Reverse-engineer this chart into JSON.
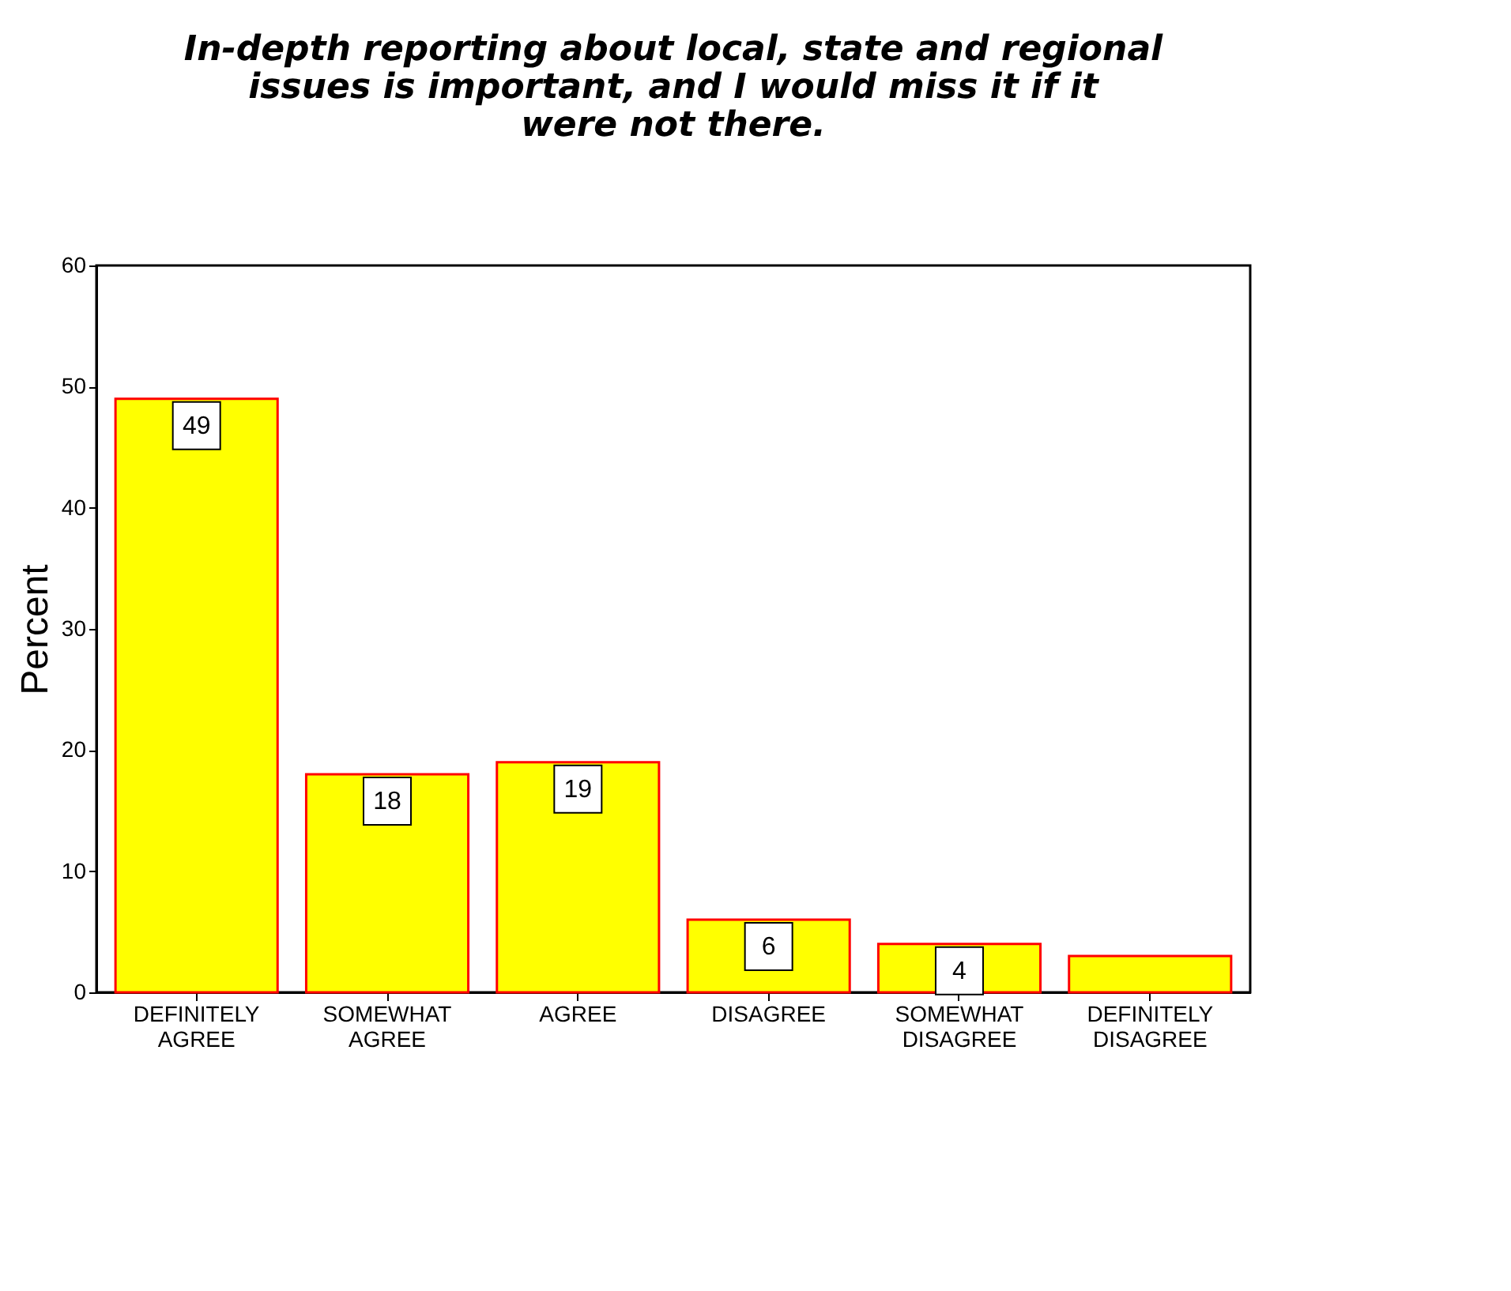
{
  "chart_data": {
    "type": "bar",
    "title": "In-depth reporting about local, state and regional issues is important, and I would miss it if it were not there.",
    "categories": [
      "DEFINITELY AGREE",
      "SOMEWHAT AGREE",
      "AGREE",
      "DISAGREE",
      "SOMEWHAT DISAGREE",
      "DEFINITELY DISAGREE"
    ],
    "values": [
      49,
      18,
      19,
      6,
      4,
      3
    ],
    "value_labels": [
      "49",
      "18",
      "19",
      "6",
      "4",
      null
    ],
    "color": "#ffff00",
    "ylabel": "Percent",
    "ylim": [
      0,
      60
    ],
    "yticks": [
      0,
      10,
      20,
      30,
      40,
      50,
      60
    ],
    "grid": false
  }
}
